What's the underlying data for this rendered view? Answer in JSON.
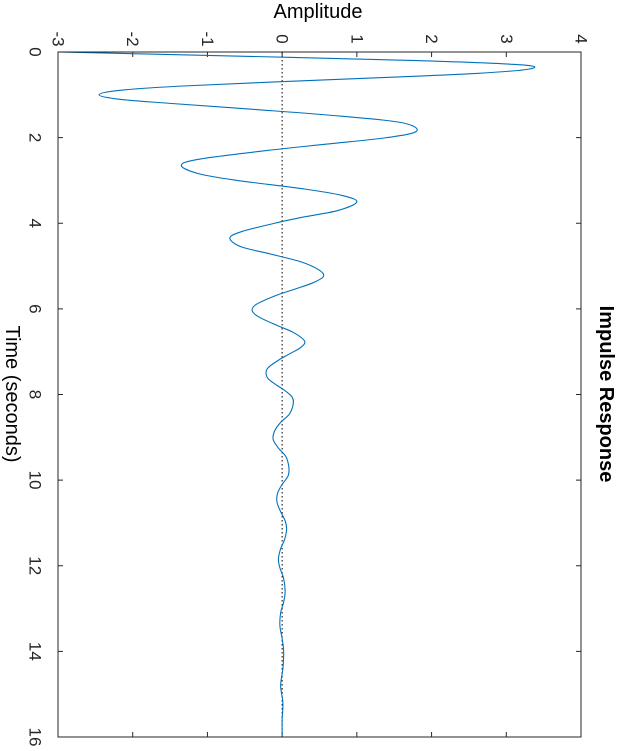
{
  "chart_data": {
    "type": "line",
    "title": "Impulse Response",
    "xlabel": "Time (seconds)",
    "ylabel": "Amplitude",
    "orientation": "rotated 90 degrees clockwise",
    "xlim": [
      0,
      16
    ],
    "ylim": [
      -3,
      4
    ],
    "xticks": [
      "0",
      "2",
      "4",
      "6",
      "8",
      "10",
      "12",
      "14",
      "16"
    ],
    "yticks": [
      "-3",
      "-2",
      "-1",
      "0",
      "1",
      "2",
      "3",
      "4"
    ],
    "grid": false,
    "zero_line": "dotted",
    "line_color": "#0072bd",
    "axis_color": "#262626",
    "series": [
      {
        "x": [
          0,
          0.1,
          0.2,
          0.3,
          0.4,
          0.5,
          0.6,
          0.7,
          0.8,
          0.9,
          1.0,
          1.1,
          1.2,
          1.35,
          1.5,
          1.65,
          1.85,
          2.0,
          2.15,
          2.3,
          2.5,
          2.65,
          2.85,
          3.0,
          3.2,
          3.35,
          3.5,
          3.7,
          3.85,
          4.0,
          4.2,
          4.35,
          4.55,
          4.7,
          4.9,
          5.1,
          5.25,
          5.4,
          5.55,
          5.7,
          5.9,
          6.05,
          6.2,
          6.4,
          6.55,
          6.75,
          6.9,
          7.05,
          7.2,
          7.4,
          7.6,
          7.75,
          7.9,
          8.05,
          8.2,
          8.45,
          8.65,
          8.85,
          9.05,
          9.25,
          9.45,
          9.7,
          9.9,
          10.1,
          10.3,
          10.5,
          10.7,
          10.95,
          11.15,
          11.4,
          11.6,
          11.85,
          12.05,
          12.3,
          12.6,
          12.85,
          13.1,
          13.4,
          13.7,
          14.0,
          14.4,
          14.8,
          15.2,
          15.6,
          16.0
        ],
        "y": [
          -3.0,
          -0.5,
          1.8,
          3.2,
          3.3,
          2.6,
          1.3,
          -0.1,
          -1.4,
          -2.2,
          -2.45,
          -2.2,
          -1.5,
          -0.3,
          0.8,
          1.6,
          1.8,
          1.4,
          0.6,
          -0.2,
          -1.1,
          -1.35,
          -1.1,
          -0.6,
          0.3,
          0.8,
          1.0,
          0.75,
          0.3,
          -0.1,
          -0.55,
          -0.7,
          -0.55,
          -0.2,
          0.25,
          0.5,
          0.55,
          0.4,
          0.15,
          -0.1,
          -0.35,
          -0.4,
          -0.3,
          -0.05,
          0.15,
          0.3,
          0.25,
          0.1,
          -0.05,
          -0.2,
          -0.2,
          -0.1,
          0.03,
          0.13,
          0.15,
          0.1,
          -0.02,
          -0.1,
          -0.12,
          -0.05,
          0.05,
          0.09,
          0.08,
          0.0,
          -0.06,
          -0.07,
          -0.03,
          0.04,
          0.06,
          0.03,
          -0.02,
          -0.05,
          -0.03,
          0.02,
          0.04,
          0.02,
          -0.02,
          -0.03,
          0.0,
          0.02,
          0.01,
          -0.02,
          0.01,
          0.0,
          0.0
        ]
      }
    ]
  }
}
